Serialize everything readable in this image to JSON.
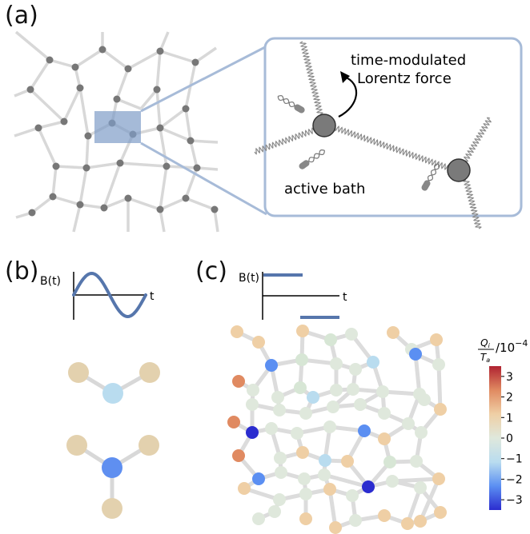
{
  "panels": {
    "a": "(a)",
    "b": "(b)",
    "c": "(c)"
  },
  "inset": {
    "force_label_line1": "time-modulated",
    "force_label_line2": "Lorentz force",
    "bath_label": "active bath"
  },
  "signal_b": {
    "ylabel": "B(t)",
    "xlabel": "t",
    "waveform": "sine"
  },
  "signal_c": {
    "ylabel": "B(t)",
    "xlabel": "t",
    "waveform": "step"
  },
  "colorbar": {
    "label_num": "Q",
    "label_num_sub": "i",
    "label_den": "T",
    "label_den_sub": "a",
    "label_suffix": "/10",
    "label_exp": "−4",
    "ticks": [
      "3",
      "2",
      "1",
      "0",
      "−1",
      "−2",
      "−3"
    ],
    "range": [
      -3.5,
      3.5
    ],
    "colors": [
      "#2b2ccf",
      "#5b8ff2",
      "#b9dcef",
      "#dfe8dc",
      "#efcfa5",
      "#e08a61",
      "#b02331"
    ]
  },
  "colors": {
    "frame": "#a7bbd8",
    "highlight": "#7f9cc8",
    "edge": "#d8d8d8",
    "node_dark": "#777777",
    "wave": "#5676ac"
  }
}
